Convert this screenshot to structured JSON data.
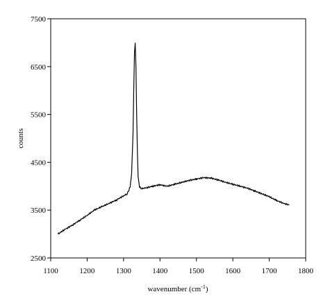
{
  "chart_data": {
    "type": "line",
    "title": "",
    "xlabel": "wavenumber (cm",
    "xlabel_superscript": "-1",
    "xlabel_suffix": ")",
    "ylabel": "counts",
    "xlim": [
      1100,
      1800
    ],
    "ylim": [
      2500,
      7500
    ],
    "xticks": [
      1100,
      1200,
      1300,
      1400,
      1500,
      1600,
      1700,
      1800
    ],
    "yticks": [
      2500,
      3500,
      4500,
      5500,
      6500,
      7500
    ],
    "grid": false,
    "legend": "none",
    "line_color": "#000000",
    "series": [
      {
        "x": [
          1120,
          1140,
          1160,
          1180,
          1200,
          1220,
          1240,
          1260,
          1280,
          1300,
          1310,
          1318,
          1322,
          1326,
          1328,
          1330,
          1332,
          1334,
          1336,
          1338,
          1340,
          1344,
          1350,
          1360,
          1380,
          1400,
          1420,
          1440,
          1460,
          1480,
          1500,
          1520,
          1540,
          1560,
          1580,
          1600,
          1620,
          1640,
          1660,
          1680,
          1700,
          1720,
          1740,
          1755
        ],
        "y": [
          3000,
          3100,
          3190,
          3290,
          3390,
          3500,
          3570,
          3640,
          3710,
          3800,
          3840,
          3980,
          4250,
          5100,
          6000,
          6800,
          7000,
          6500,
          5500,
          4700,
          4200,
          3980,
          3950,
          3960,
          4000,
          4030,
          4000,
          4040,
          4080,
          4120,
          4150,
          4180,
          4170,
          4130,
          4080,
          4040,
          4000,
          3960,
          3900,
          3840,
          3780,
          3700,
          3640,
          3610
        ]
      }
    ]
  }
}
